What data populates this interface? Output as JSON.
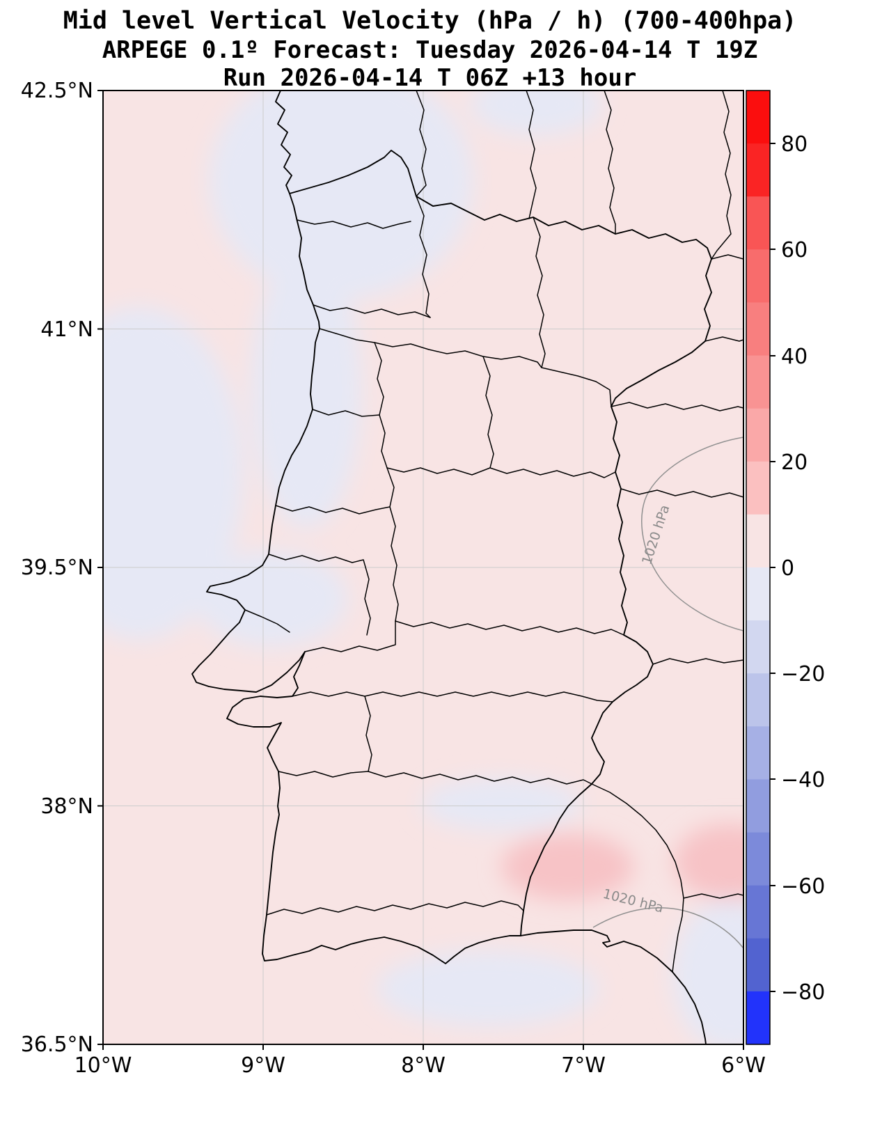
{
  "title": {
    "line1": "Mid level Vertical Velocity (hPa / h)  (700-400hpa)",
    "line2": "ARPEGE 0.1º Forecast: Tuesday 2026-04-14 T 19Z",
    "line3": "Run 2026-04-14 T 06Z +13 hour"
  },
  "chart_data": {
    "type": "heatmap",
    "variable": "Mid level Vertical Velocity",
    "units": "hPa / h",
    "layer": "700-400hpa",
    "model": "ARPEGE 0.1º",
    "forecast_valid": "Tuesday 2026-04-14 T 19Z",
    "run": "2026-04-14 T 06Z",
    "lead_time": "+13 hour",
    "region": "Portugal and western Iberia",
    "x_axis": {
      "ticks": [
        "10°W",
        "9°W",
        "8°W",
        "7°W",
        "6°W"
      ],
      "range_deg_west": [
        10,
        6
      ],
      "grid": true
    },
    "y_axis": {
      "ticks": [
        "42.5°N",
        "41°N",
        "39.5°N",
        "38°N",
        "36.5°N"
      ],
      "range_deg_north": [
        36.5,
        42.5
      ],
      "grid": true
    },
    "colorbar": {
      "tick_labels": [
        "80",
        "60",
        "40",
        "20",
        "0",
        "−20",
        "−40",
        "−60",
        "−80"
      ],
      "range": [
        -90,
        90
      ],
      "position": "right",
      "segments": [
        {
          "from": 80,
          "to": 90,
          "color": "#fb0e0e"
        },
        {
          "from": 70,
          "to": 80,
          "color": "#fa2424"
        },
        {
          "from": 60,
          "to": 70,
          "color": "#f95555"
        },
        {
          "from": 50,
          "to": 60,
          "color": "#f86c6c"
        },
        {
          "from": 40,
          "to": 50,
          "color": "#f87f7f"
        },
        {
          "from": 30,
          "to": 40,
          "color": "#f99393"
        },
        {
          "from": 20,
          "to": 30,
          "color": "#faa8a8"
        },
        {
          "from": 10,
          "to": 20,
          "color": "#fbc0c0"
        },
        {
          "from": 0,
          "to": 10,
          "color": "#f8e4e4"
        },
        {
          "from": -10,
          "to": 0,
          "color": "#e6e8f5"
        },
        {
          "from": -20,
          "to": -10,
          "color": "#d2d7f0"
        },
        {
          "from": -30,
          "to": -20,
          "color": "#bcc4ea"
        },
        {
          "from": -40,
          "to": -30,
          "color": "#a6b0e5"
        },
        {
          "from": -50,
          "to": -40,
          "color": "#919ddf"
        },
        {
          "from": -60,
          "to": -50,
          "color": "#7c8ada"
        },
        {
          "from": -70,
          "to": -60,
          "color": "#6776d5"
        },
        {
          "from": -80,
          "to": -70,
          "color": "#5263d0"
        },
        {
          "from": -90,
          "to": -80,
          "color": "#2233fb"
        }
      ]
    },
    "isobars": {
      "level_hpa": 1020,
      "labels": [
        "1020 hPa",
        "1020 hPa"
      ]
    },
    "field_summary": {
      "background_value": "0 to 10 hPa/h (pale pink) over most of the domain",
      "weak_negative_patches": "−10 to 0 (pale lavender) over NW Iberia, along the west coast near 39.5N, a strip near 38N, and along the far south / bottom-right",
      "moderate_positive_patches": "10 to 20 (light pink-red) near 37.6N 7.0W and 37.6N 6.2W"
    },
    "palette": {
      "background": "#f8e4e4",
      "negative_weak": "#e6e8f5",
      "positive_moderate": "#f7c3c6",
      "grid": "#cccccc",
      "boundary": "#000000",
      "isobar": "#909090"
    }
  }
}
